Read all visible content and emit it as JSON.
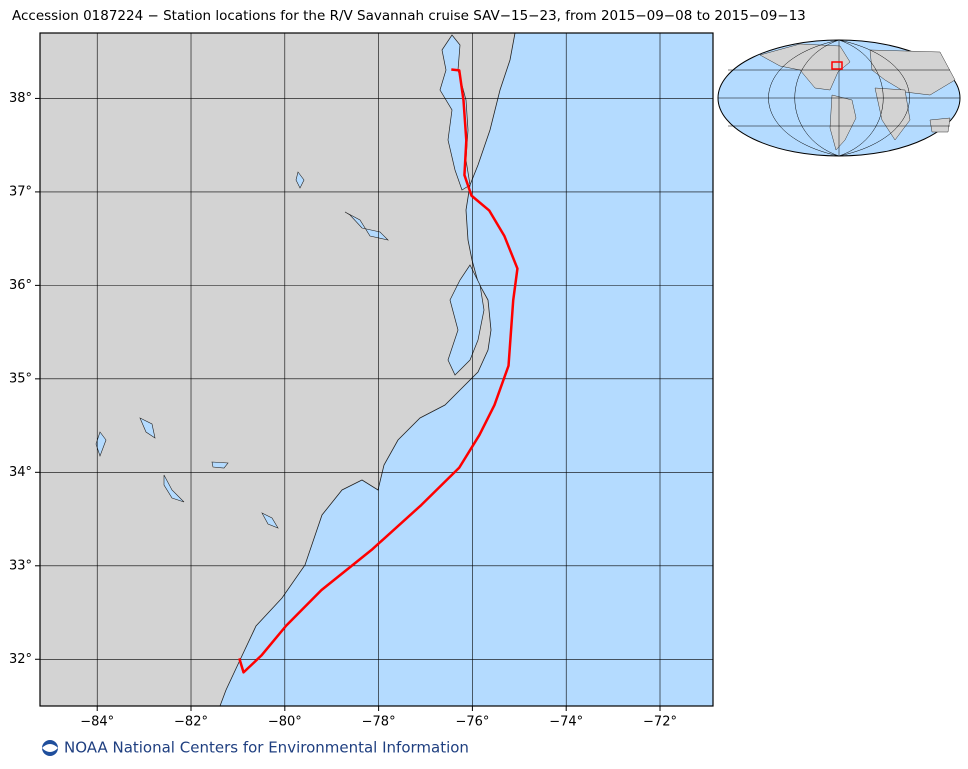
{
  "title": "Accession 0187224 − Station locations for the R/V Savannah cruise SAV−15−23, from 2015−09−08 to 2015−09−13",
  "footer": "NOAA National Centers for Environmental Information",
  "map": {
    "xlim": [
      -85.22,
      -70.87
    ],
    "ylim": [
      31.5,
      38.7
    ],
    "xticks": [
      {
        "value": -84,
        "label": "−84°"
      },
      {
        "value": -82,
        "label": "−82°"
      },
      {
        "value": -80,
        "label": "−80°"
      },
      {
        "value": -78,
        "label": "−78°"
      },
      {
        "value": -76,
        "label": "−76°"
      },
      {
        "value": -74,
        "label": "−74°"
      },
      {
        "value": -72,
        "label": "−72°"
      }
    ],
    "yticks": [
      {
        "value": 32,
        "label": "32°"
      },
      {
        "value": 33,
        "label": "33°"
      },
      {
        "value": 34,
        "label": "34°"
      },
      {
        "value": 35,
        "label": "35°"
      },
      {
        "value": 36,
        "label": "36°"
      },
      {
        "value": 37,
        "label": "37°"
      },
      {
        "value": 38,
        "label": "38°"
      }
    ],
    "track": {
      "color": "#ff0000",
      "lon": [
        -76.45,
        -76.28,
        -76.19,
        -76.13,
        -76.17,
        -76.02,
        -75.64,
        -75.32,
        -75.04,
        -75.13,
        -75.23,
        -75.53,
        -75.85,
        -76.28,
        -77.09,
        -78.15,
        -79.22,
        -79.97,
        -80.5,
        -80.88,
        -80.97
      ],
      "lat": [
        38.31,
        38.3,
        37.98,
        37.55,
        37.18,
        36.96,
        36.8,
        36.53,
        36.18,
        35.84,
        35.14,
        34.72,
        34.4,
        34.05,
        33.65,
        33.17,
        32.74,
        32.36,
        32.04,
        31.86,
        32.01
      ]
    }
  }
}
